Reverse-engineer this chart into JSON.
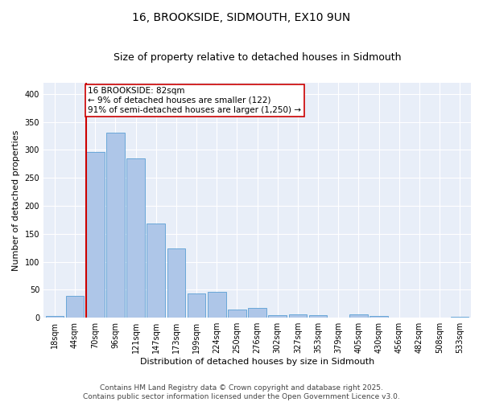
{
  "title": "16, BROOKSIDE, SIDMOUTH, EX10 9UN",
  "subtitle": "Size of property relative to detached houses in Sidmouth",
  "xlabel": "Distribution of detached houses by size in Sidmouth",
  "ylabel": "Number of detached properties",
  "categories": [
    "18sqm",
    "44sqm",
    "70sqm",
    "96sqm",
    "121sqm",
    "147sqm",
    "173sqm",
    "199sqm",
    "224sqm",
    "250sqm",
    "276sqm",
    "302sqm",
    "327sqm",
    "353sqm",
    "379sqm",
    "405sqm",
    "430sqm",
    "456sqm",
    "482sqm",
    "508sqm",
    "533sqm"
  ],
  "values": [
    3,
    39,
    296,
    330,
    284,
    169,
    124,
    44,
    46,
    15,
    17,
    4,
    6,
    4,
    0,
    6,
    3,
    1,
    0,
    0,
    2
  ],
  "bar_color": "#aec6e8",
  "bar_edge_color": "#5a9fd4",
  "redline_index": 2,
  "annotation_text": "16 BROOKSIDE: 82sqm\n← 9% of detached houses are smaller (122)\n91% of semi-detached houses are larger (1,250) →",
  "annotation_box_color": "#ffffff",
  "annotation_box_edge": "#cc0000",
  "redline_color": "#cc0000",
  "ylim": [
    0,
    420
  ],
  "yticks": [
    0,
    50,
    100,
    150,
    200,
    250,
    300,
    350,
    400
  ],
  "bg_color": "#e8eef8",
  "footer_text": "Contains HM Land Registry data © Crown copyright and database right 2025.\nContains public sector information licensed under the Open Government Licence v3.0.",
  "title_fontsize": 10,
  "subtitle_fontsize": 9,
  "axis_label_fontsize": 8,
  "tick_fontsize": 7,
  "footer_fontsize": 6.5,
  "annotation_fontsize": 7.5
}
